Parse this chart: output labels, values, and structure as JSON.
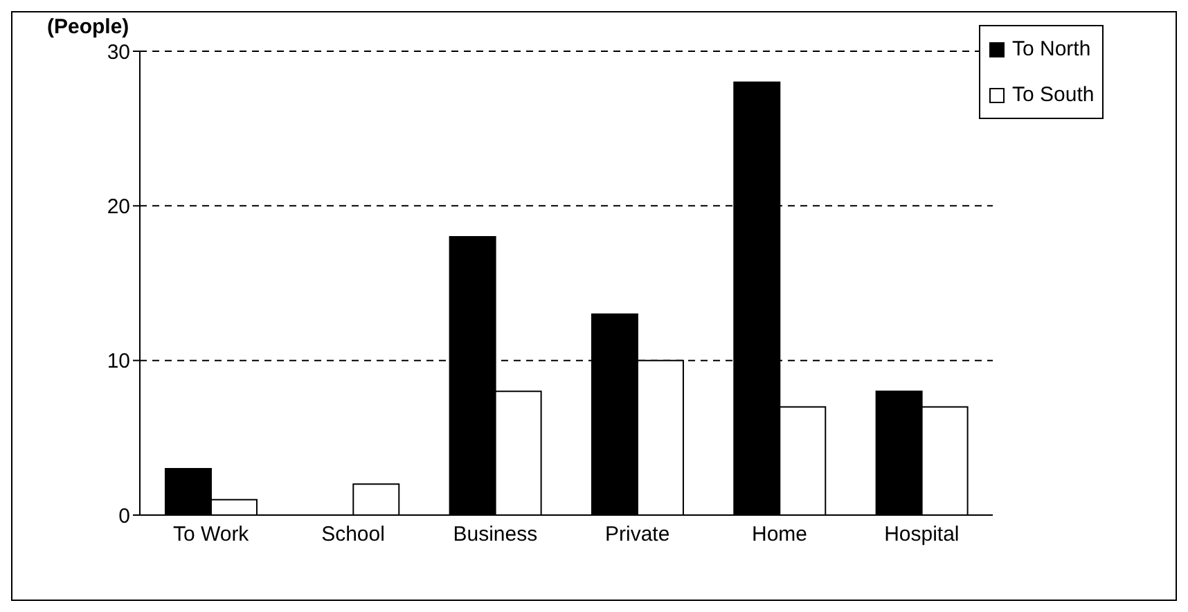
{
  "chart_data": {
    "type": "bar",
    "ylabel": "(People)",
    "categories": [
      "To Work",
      "School",
      "Business",
      "Private",
      "Home",
      "Hospital"
    ],
    "series": [
      {
        "name": "To North",
        "color": "#000000",
        "values": [
          3,
          0,
          18,
          13,
          28,
          8
        ]
      },
      {
        "name": "To South",
        "color": "#ffffff",
        "values": [
          1,
          2,
          8,
          10,
          7,
          7
        ]
      }
    ],
    "ylim": [
      0,
      30
    ],
    "yticks": [
      0,
      10,
      20,
      30
    ],
    "grid": "y",
    "legend": "top right"
  }
}
